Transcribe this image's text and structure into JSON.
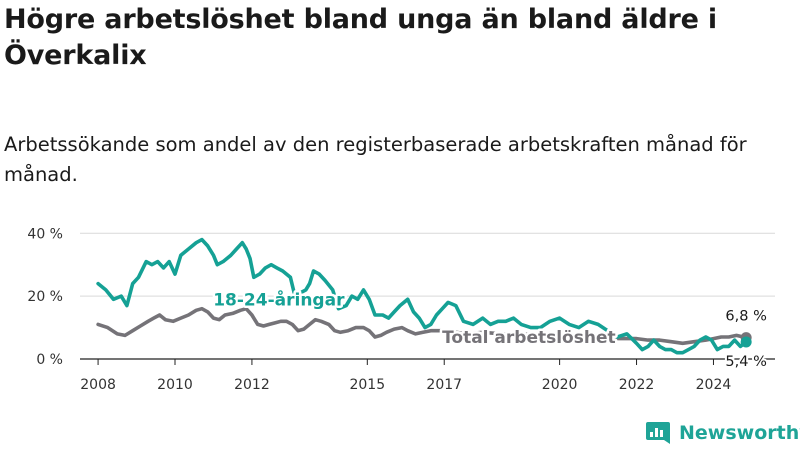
{
  "title": "Högre arbetslöshet bland unga än bland äldre i Överkalix",
  "subtitle": "Arbetssökande som andel av den registerbaserade arbetskraften månad för månad.",
  "brand": {
    "name": "Newsworthy"
  },
  "colors": {
    "youth": "#15a195",
    "total": "#757378",
    "grid": "#d9d9d9",
    "brand": "#1fa497"
  },
  "chart_data": {
    "type": "line",
    "title": "",
    "xlabel": "",
    "ylabel": "",
    "xlim": [
      2007.4,
      2025.6
    ],
    "ylim": [
      0,
      42
    ],
    "y_ticks": [
      {
        "value": 0,
        "label": "0 %"
      },
      {
        "value": 20,
        "label": "20 %"
      },
      {
        "value": 40,
        "label": "40 %"
      }
    ],
    "x_ticks": [
      {
        "value": 2008,
        "label": "2008"
      },
      {
        "value": 2010,
        "label": "2010"
      },
      {
        "value": 2012,
        "label": "2012"
      },
      {
        "value": 2015,
        "label": "2015"
      },
      {
        "value": 2017,
        "label": "2017"
      },
      {
        "value": 2020,
        "label": "2020"
      },
      {
        "value": 2022,
        "label": "2022"
      },
      {
        "value": 2024,
        "label": "2024"
      }
    ],
    "grid": true,
    "series": [
      {
        "name": "18-24-åringar",
        "color": "#15a195",
        "points": [
          [
            2008.0,
            24
          ],
          [
            2008.2,
            22
          ],
          [
            2008.4,
            19
          ],
          [
            2008.6,
            20
          ],
          [
            2008.75,
            17
          ],
          [
            2008.9,
            24
          ],
          [
            2009.05,
            26
          ],
          [
            2009.25,
            31
          ],
          [
            2009.4,
            30
          ],
          [
            2009.55,
            31
          ],
          [
            2009.7,
            29
          ],
          [
            2009.85,
            31
          ],
          [
            2010.0,
            27
          ],
          [
            2010.15,
            33
          ],
          [
            2010.35,
            35
          ],
          [
            2010.55,
            37
          ],
          [
            2010.7,
            38
          ],
          [
            2010.85,
            36
          ],
          [
            2011.0,
            33
          ],
          [
            2011.1,
            30
          ],
          [
            2011.25,
            31
          ],
          [
            2011.45,
            33
          ],
          [
            2011.6,
            35
          ],
          [
            2011.75,
            37
          ],
          [
            2011.85,
            35
          ],
          [
            2011.95,
            32
          ],
          [
            2012.05,
            26
          ],
          [
            2012.2,
            27
          ],
          [
            2012.35,
            29
          ],
          [
            2012.5,
            30
          ],
          [
            2012.65,
            29
          ],
          [
            2012.8,
            28
          ],
          [
            2013.0,
            26
          ],
          [
            2013.1,
            21
          ],
          [
            2013.25,
            21
          ],
          [
            2013.4,
            22
          ],
          [
            2013.5,
            24
          ],
          [
            2013.6,
            28
          ],
          [
            2013.75,
            27
          ],
          [
            2013.9,
            25
          ],
          [
            2014.1,
            22
          ],
          [
            2014.25,
            16
          ],
          [
            2014.45,
            17
          ],
          [
            2014.6,
            20
          ],
          [
            2014.75,
            19
          ],
          [
            2014.9,
            22
          ],
          [
            2015.05,
            19
          ],
          [
            2015.2,
            14
          ],
          [
            2015.4,
            14
          ],
          [
            2015.55,
            13
          ],
          [
            2015.7,
            15
          ],
          [
            2015.85,
            17
          ],
          [
            2016.05,
            19
          ],
          [
            2016.2,
            15
          ],
          [
            2016.35,
            13
          ],
          [
            2016.5,
            10
          ],
          [
            2016.65,
            11
          ],
          [
            2016.8,
            14
          ],
          [
            2016.95,
            16
          ],
          [
            2017.1,
            18
          ],
          [
            2017.3,
            17
          ],
          [
            2017.5,
            12
          ],
          [
            2017.75,
            11
          ],
          [
            2018.0,
            13
          ],
          [
            2018.2,
            11
          ],
          [
            2018.4,
            12
          ],
          [
            2018.6,
            12
          ],
          [
            2018.8,
            13
          ],
          [
            2019.0,
            11
          ],
          [
            2019.25,
            10
          ],
          [
            2019.5,
            10
          ],
          [
            2019.75,
            12
          ],
          [
            2020.0,
            13
          ],
          [
            2020.25,
            11
          ],
          [
            2020.5,
            10
          ],
          [
            2020.75,
            12
          ],
          [
            2021.0,
            11
          ],
          [
            2021.25,
            9
          ],
          [
            2021.5,
            7
          ],
          [
            2021.75,
            8
          ],
          [
            2022.0,
            5
          ],
          [
            2022.15,
            3
          ],
          [
            2022.3,
            4
          ],
          [
            2022.45,
            6
          ],
          [
            2022.6,
            4
          ],
          [
            2022.75,
            3
          ],
          [
            2022.9,
            3
          ],
          [
            2023.05,
            2
          ],
          [
            2023.2,
            2
          ],
          [
            2023.35,
            3
          ],
          [
            2023.5,
            4
          ],
          [
            2023.65,
            6
          ],
          [
            2023.8,
            7
          ],
          [
            2023.95,
            6
          ],
          [
            2024.1,
            3
          ],
          [
            2024.25,
            4
          ],
          [
            2024.4,
            4
          ],
          [
            2024.55,
            6
          ],
          [
            2024.7,
            4
          ],
          [
            2024.85,
            5.4
          ]
        ]
      },
      {
        "name": "Total arbetslöshet",
        "color": "#757378",
        "points": [
          [
            2008.0,
            11
          ],
          [
            2008.25,
            10
          ],
          [
            2008.5,
            8
          ],
          [
            2008.7,
            7.5
          ],
          [
            2008.9,
            9
          ],
          [
            2009.1,
            10.5
          ],
          [
            2009.3,
            12
          ],
          [
            2009.45,
            13
          ],
          [
            2009.6,
            14
          ],
          [
            2009.75,
            12.5
          ],
          [
            2009.95,
            12
          ],
          [
            2010.15,
            13
          ],
          [
            2010.35,
            14
          ],
          [
            2010.55,
            15.5
          ],
          [
            2010.7,
            16
          ],
          [
            2010.85,
            15
          ],
          [
            2011.0,
            13
          ],
          [
            2011.15,
            12.5
          ],
          [
            2011.3,
            14
          ],
          [
            2011.5,
            14.5
          ],
          [
            2011.7,
            15.5
          ],
          [
            2011.85,
            16
          ],
          [
            2012.0,
            14
          ],
          [
            2012.15,
            11
          ],
          [
            2012.3,
            10.5
          ],
          [
            2012.45,
            11
          ],
          [
            2012.6,
            11.5
          ],
          [
            2012.75,
            12
          ],
          [
            2012.9,
            12
          ],
          [
            2013.05,
            11
          ],
          [
            2013.2,
            9
          ],
          [
            2013.35,
            9.5
          ],
          [
            2013.5,
            11
          ],
          [
            2013.65,
            12.5
          ],
          [
            2013.8,
            12
          ],
          [
            2014.0,
            11
          ],
          [
            2014.15,
            9
          ],
          [
            2014.3,
            8.5
          ],
          [
            2014.5,
            9
          ],
          [
            2014.7,
            10
          ],
          [
            2014.9,
            10
          ],
          [
            2015.05,
            9
          ],
          [
            2015.2,
            7
          ],
          [
            2015.35,
            7.5
          ],
          [
            2015.5,
            8.5
          ],
          [
            2015.7,
            9.5
          ],
          [
            2015.9,
            10
          ],
          [
            2016.05,
            9
          ],
          [
            2016.25,
            8
          ],
          [
            2016.45,
            8.5
          ],
          [
            2016.65,
            9
          ],
          [
            2016.85,
            9
          ],
          [
            2017.05,
            9
          ],
          [
            2017.3,
            8.5
          ],
          [
            2017.6,
            8
          ],
          [
            2018.0,
            8.5
          ],
          [
            2018.5,
            8
          ],
          [
            2019.0,
            8
          ],
          [
            2019.5,
            7.5
          ],
          [
            2020.0,
            8
          ],
          [
            2020.5,
            7.5
          ],
          [
            2021.0,
            7
          ],
          [
            2021.5,
            6.5
          ],
          [
            2022.0,
            6.5
          ],
          [
            2022.3,
            6
          ],
          [
            2022.6,
            6
          ],
          [
            2022.9,
            5.5
          ],
          [
            2023.2,
            5
          ],
          [
            2023.5,
            5.5
          ],
          [
            2023.8,
            6
          ],
          [
            2024.0,
            6.5
          ],
          [
            2024.2,
            7
          ],
          [
            2024.4,
            7
          ],
          [
            2024.6,
            7.5
          ],
          [
            2024.85,
            6.8
          ]
        ]
      }
    ],
    "series_labels": [
      {
        "text": "18-24-åringar",
        "series": 0,
        "x": 2012.7,
        "y": 19
      },
      {
        "text": "Total arbetslöshet",
        "series": 1,
        "x": 2019.2,
        "y": 7
      }
    ],
    "end_labels": [
      {
        "text": "6,8 %",
        "series": 1,
        "value": 6.8
      },
      {
        "text": "5,4 %",
        "series": 0,
        "value": 5.4
      }
    ]
  }
}
